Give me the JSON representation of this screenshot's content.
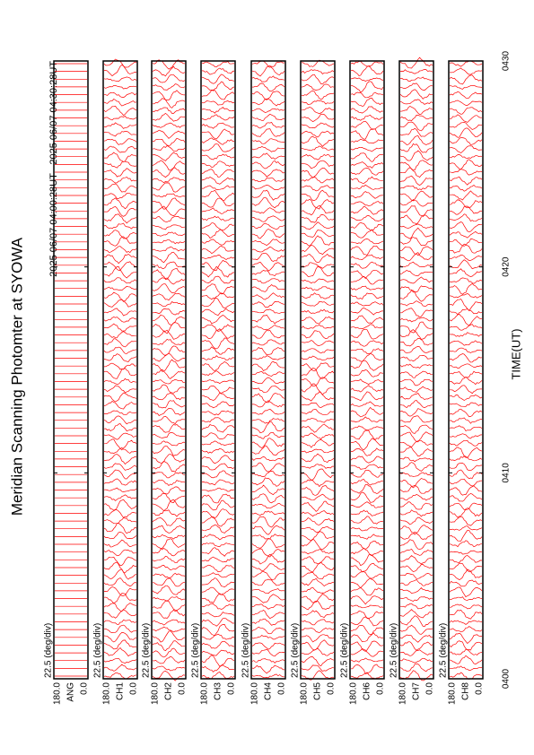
{
  "chart_data": {
    "type": "stackplot",
    "title": "Meridian Scanning Photomter at SYOWA",
    "subtitle": "2025 06/07 04:00:28UT - 2025 06/07 04:30:28UT",
    "x_label": "TIME(UT)",
    "xlim": [
      0,
      30
    ],
    "xticks": [
      {
        "value": 0,
        "label": "0400"
      },
      {
        "value": 10,
        "label": "0410"
      },
      {
        "value": 20,
        "label": "0420"
      },
      {
        "value": 30,
        "label": "0430"
      }
    ],
    "color": "#ff0000",
    "panels": [
      {
        "name": "ANG",
        "scale_label": "22.5 (deg/div)",
        "ylim": [
          0,
          180
        ],
        "yticks": [
          {
            "value": 180,
            "label": "180.0"
          },
          {
            "value": 0,
            "label": "0.0"
          }
        ]
      },
      {
        "name": "CH1",
        "scale_label": "22.5 (deg/div)",
        "ylim": [
          0,
          180
        ],
        "yticks": [
          {
            "value": 180,
            "label": "180.0"
          },
          {
            "value": 0,
            "label": "0.0"
          }
        ]
      },
      {
        "name": "CH2",
        "scale_label": "22.5 (deg/div)",
        "ylim": [
          0,
          180
        ],
        "yticks": [
          {
            "value": 180,
            "label": "180.0"
          },
          {
            "value": 0,
            "label": "0.0"
          }
        ]
      },
      {
        "name": "CH3",
        "scale_label": "22.5 (deg/div)",
        "ylim": [
          0,
          180
        ],
        "yticks": [
          {
            "value": 180,
            "label": "180.0"
          },
          {
            "value": 0,
            "label": "0.0"
          }
        ]
      },
      {
        "name": "CH4",
        "scale_label": "22.5 (deg/div)",
        "ylim": [
          0,
          180
        ],
        "yticks": [
          {
            "value": 180,
            "label": "180.0"
          },
          {
            "value": 0,
            "label": "0.0"
          }
        ]
      },
      {
        "name": "CH5",
        "scale_label": "22.5 (deg/div)",
        "ylim": [
          0,
          180
        ],
        "yticks": [
          {
            "value": 180,
            "label": "180.0"
          },
          {
            "value": 0,
            "label": "0.0"
          }
        ]
      },
      {
        "name": "CH6",
        "scale_label": "22.5 (deg/div)",
        "ylim": [
          0,
          180
        ],
        "yticks": [
          {
            "value": 180,
            "label": "180.0"
          },
          {
            "value": 0,
            "label": "0.0"
          }
        ]
      },
      {
        "name": "CH7",
        "scale_label": "22.5 (deg/div)",
        "ylim": [
          0,
          180
        ],
        "yticks": [
          {
            "value": 180,
            "label": "180.0"
          },
          {
            "value": 0,
            "label": "0.0"
          }
        ]
      },
      {
        "name": "CH8",
        "scale_label": "22.5 (deg/div)",
        "ylim": [
          0,
          180
        ],
        "yticks": [
          {
            "value": 180,
            "label": "180.0"
          },
          {
            "value": 0,
            "label": "0.0"
          }
        ]
      }
    ]
  }
}
